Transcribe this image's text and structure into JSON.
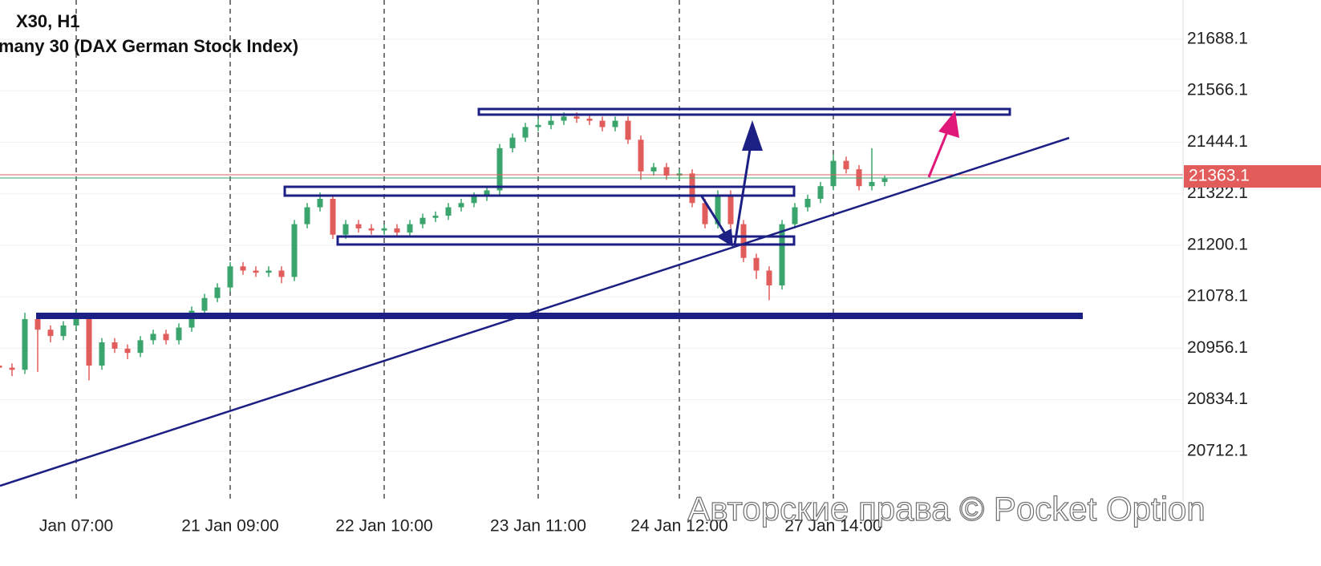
{
  "chart_data": {
    "type": "candlestick",
    "title": "X30, H1",
    "subtitle": "many 30 (DAX German Stock Index)",
    "watermark": "Авторские права © Pocket Option",
    "categories": [
      null,
      null,
      null,
      null,
      null,
      null,
      "Jan 07:00",
      null,
      null,
      null,
      null,
      null,
      null,
      null,
      null,
      null,
      null,
      null,
      "21 Jan 09:00",
      null,
      null,
      null,
      null,
      null,
      null,
      null,
      null,
      null,
      null,
      null,
      "22 Jan 10:00",
      null,
      null,
      null,
      null,
      null,
      null,
      null,
      null,
      null,
      null,
      null,
      "23 Jan 11:00",
      null,
      null,
      null,
      null,
      null,
      null,
      null,
      null,
      null,
      null,
      "24 Jan 12:00",
      null,
      null,
      null,
      null,
      null,
      null,
      null,
      null,
      null,
      null,
      null,
      "27 Jan 14:00",
      null,
      null,
      null,
      null
    ],
    "open": [
      20915,
      20910,
      20905,
      21025,
      21000,
      20985,
      21010,
      21030,
      20915,
      20970,
      20955,
      20945,
      20975,
      20990,
      20975,
      21005,
      21045,
      21075,
      21100,
      21150,
      21140,
      21135,
      21140,
      21125,
      21250,
      21290,
      21310,
      21225,
      21250,
      21240,
      21235,
      21240,
      21230,
      21250,
      21265,
      21270,
      21290,
      21300,
      21315,
      21330,
      21430,
      21455,
      21480,
      21485,
      21495,
      21505,
      21500,
      21495,
      21480,
      21495,
      21450,
      21375,
      21385,
      21365,
      21370,
      21300,
      21250,
      21320,
      21250,
      21170,
      21140,
      21105,
      21250,
      21290,
      21310,
      21340,
      21400,
      21380,
      21340,
      21350
    ],
    "high": [
      20925,
      20920,
      21040,
      21035,
      21010,
      21020,
      21045,
      21035,
      20980,
      20980,
      20965,
      20985,
      21000,
      21000,
      21015,
      21055,
      21085,
      21110,
      21160,
      21160,
      21150,
      21150,
      21150,
      21260,
      21300,
      21325,
      21315,
      21260,
      21260,
      21250,
      21250,
      21250,
      21260,
      21275,
      21280,
      21300,
      21310,
      21325,
      21340,
      21440,
      21465,
      21490,
      21500,
      21510,
      21515,
      21515,
      21510,
      21505,
      21505,
      21505,
      21460,
      21395,
      21395,
      21380,
      21380,
      21310,
      21330,
      21330,
      21260,
      21180,
      21150,
      21260,
      21300,
      21320,
      21350,
      21415,
      21410,
      21390,
      21430,
      21365
    ],
    "low": [
      20895,
      20890,
      20895,
      20900,
      20970,
      20975,
      21000,
      20880,
      20905,
      20945,
      20930,
      20935,
      20965,
      20965,
      20965,
      20995,
      21035,
      21065,
      21090,
      21130,
      21125,
      21125,
      21110,
      21115,
      21240,
      21280,
      21215,
      21215,
      21230,
      21225,
      21225,
      21220,
      21220,
      21240,
      21255,
      21260,
      21280,
      21290,
      21305,
      21320,
      21420,
      21445,
      21470,
      21475,
      21485,
      21490,
      21485,
      21470,
      21470,
      21440,
      21355,
      21365,
      21355,
      21355,
      21290,
      21240,
      21240,
      21240,
      21160,
      21120,
      21070,
      21095,
      21240,
      21280,
      21300,
      21330,
      21370,
      21330,
      21330,
      21340
    ],
    "close": [
      20910,
      20905,
      21025,
      21000,
      20985,
      21010,
      21030,
      20915,
      20970,
      20955,
      20945,
      20975,
      20990,
      20975,
      21005,
      21045,
      21075,
      21100,
      21150,
      21140,
      21135,
      21140,
      21125,
      21250,
      21290,
      21310,
      21225,
      21250,
      21240,
      21235,
      21240,
      21230,
      21250,
      21265,
      21270,
      21290,
      21300,
      21315,
      21330,
      21430,
      21455,
      21480,
      21485,
      21495,
      21505,
      21500,
      21495,
      21480,
      21495,
      21450,
      21375,
      21385,
      21365,
      21370,
      21300,
      21250,
      21320,
      21250,
      21170,
      21140,
      21105,
      21250,
      21290,
      21310,
      21340,
      21400,
      21380,
      21340,
      21350,
      21358
    ],
    "up_color": "#3aa46c",
    "down_color": "#e25c5c",
    "ylim": [
      20594,
      21781
    ],
    "yticks": [
      21688.1,
      21566.1,
      21444.1,
      21322.1,
      21200.1,
      21078.1,
      20956.1,
      20834.1,
      20712.1
    ],
    "last_price": 21363.1,
    "grid": true
  }
}
